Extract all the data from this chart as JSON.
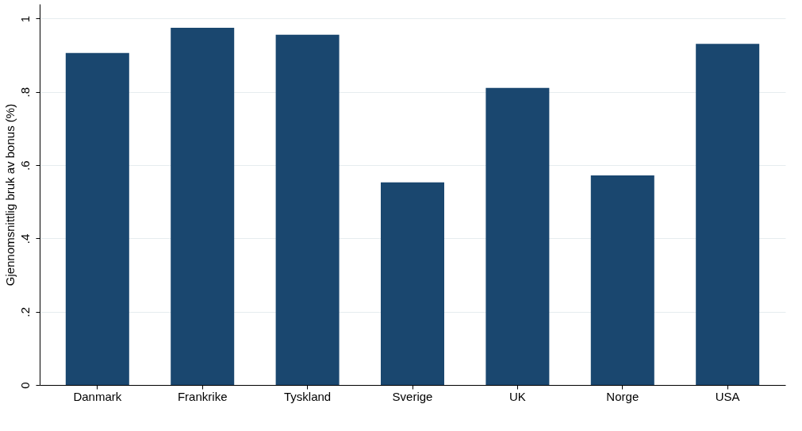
{
  "chart_data": {
    "type": "bar",
    "ylabel": "Gjennomsnittlig bruk av bonus (%)",
    "categories": [
      "Danmark",
      "Frankrike",
      "Tyskland",
      "Sverige",
      "UK",
      "Norge",
      "USA"
    ],
    "values": [
      0.906,
      0.975,
      0.956,
      0.553,
      0.811,
      0.572,
      0.931
    ],
    "color": "#1a476f",
    "ylim": [
      0,
      1.04
    ],
    "yticks": [
      0,
      {
        "value": 0.2,
        "label": ".2"
      },
      {
        "value": 0.4,
        "label": ".4"
      },
      {
        "value": 0.6,
        "label": ".6"
      },
      {
        "value": 0.8,
        "label": ".8"
      },
      1
    ],
    "grid": "y"
  }
}
